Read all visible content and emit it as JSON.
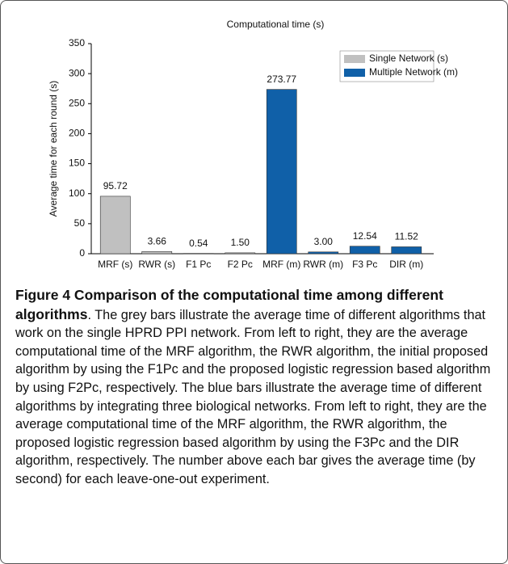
{
  "chart_data": {
    "type": "bar",
    "title": "Computational time (s)",
    "y_label": "Average time for each round (s)",
    "categories": [
      "MRF (s)",
      "RWR (s)",
      "F1 Pc",
      "F2 Pc",
      "MRF (m)",
      "RWR (m)",
      "F3 Pc",
      "DIR (m)"
    ],
    "series": [
      {
        "name": "Single Network (s)",
        "color": "#c0c0c0",
        "values": [
          95.72,
          3.66,
          0.54,
          1.5,
          null,
          null,
          null,
          null
        ],
        "value_labels": [
          "95.72",
          "3.66",
          "0.54",
          "1.50",
          null,
          null,
          null,
          null
        ]
      },
      {
        "name": "Multiple Network (m)",
        "color": "#1060a8",
        "values": [
          null,
          null,
          null,
          null,
          273.77,
          3.0,
          12.54,
          11.52
        ],
        "value_labels": [
          null,
          null,
          null,
          null,
          "273.77",
          "3.00",
          "12.54",
          "11.52"
        ]
      }
    ],
    "ylim": [
      0,
      350
    ],
    "yticks": [
      0,
      50,
      100,
      150,
      200,
      250,
      300,
      350
    ],
    "legend": "upper right"
  },
  "caption": {
    "title": "Figure 4 Comparison of the computational time among different algorithms",
    "body": ". The grey bars illustrate the average time of different algorithms that work on the single HPRD PPI network. From left to right, they are the average computational time of the MRF algorithm, the RWR algorithm, the initial proposed algorithm by using the F1Pc and the proposed logistic regression based algorithm by using F2Pc, respectively. The blue bars illustrate the average time of different algorithms by integrating three biological networks. From left to right, they are the average computational time of the MRF algorithm, the RWR algorithm, the proposed logistic regression based algorithm by using the F3Pc and the DIR algorithm, respectively. The number above each bar gives the average time (by second) for each leave-one-out experiment."
  }
}
